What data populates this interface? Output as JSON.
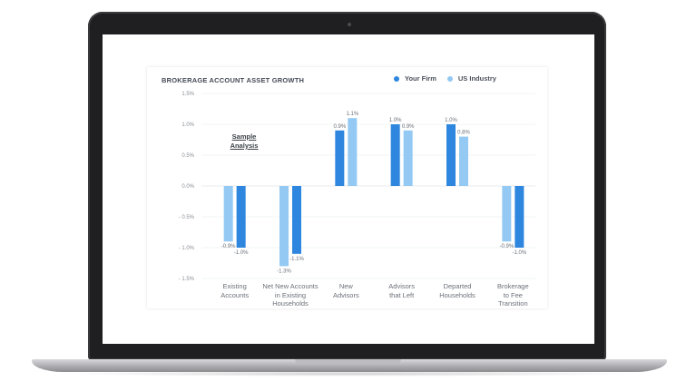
{
  "colors": {
    "your_firm": "#2e86de",
    "us_industry": "#93c9f3"
  },
  "chart_data": {
    "type": "bar",
    "title": "BROKERAGE ACCOUNT ASSET GROWTH",
    "annotation": "Sample Analysis",
    "categories": [
      "Existing\nAccounts",
      "Net New Accounts\nin Existing\nHouseholds",
      "New\nAdvisors",
      "Advisors\nthat Left",
      "Departed\nHouseholds",
      "Brokerage\nto Fee\nTransition"
    ],
    "series": [
      {
        "name": "Your Firm",
        "color_key": "your_firm",
        "values": [
          -1.0,
          -1.1,
          0.9,
          1.0,
          1.0,
          -1.0
        ],
        "labels": [
          "-1.0%",
          "-1.1%",
          "0.9%",
          "1.0%",
          "1.0%",
          "-1.0%"
        ]
      },
      {
        "name": "US Industry",
        "color_key": "us_industry",
        "values": [
          -0.9,
          -1.3,
          1.1,
          0.9,
          0.8,
          -0.9
        ],
        "labels": [
          "-0.9%",
          "-1.3%",
          "1.1%",
          "0.9%",
          "0.8%",
          "-0.9%"
        ]
      }
    ],
    "bar_order": [
      [
        "us_industry",
        "your_firm"
      ],
      [
        "us_industry",
        "your_firm"
      ],
      [
        "your_firm",
        "us_industry"
      ],
      [
        "your_firm",
        "us_industry"
      ],
      [
        "your_firm",
        "us_industry"
      ],
      [
        "us_industry",
        "your_firm"
      ]
    ],
    "yticks": [
      "1.5%",
      "1.0%",
      "0.5%",
      "0.0%",
      "- 0.5%",
      "- 1.0%",
      "- 1.5%"
    ],
    "ytick_values": [
      1.5,
      1.0,
      0.5,
      0.0,
      -0.5,
      -1.0,
      -1.5
    ],
    "ylim": [
      -1.5,
      1.5
    ],
    "legend_position": "top-right",
    "grid": true
  }
}
